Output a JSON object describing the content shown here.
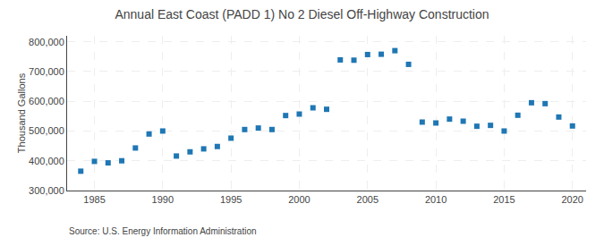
{
  "chart_data": {
    "type": "scatter",
    "title": "Annual East Coast (PADD 1) No 2 Diesel Off-Highway Construction",
    "ylabel": "Thousand Gallons",
    "annotations": [
      "Source: U.S. Energy Information Administration"
    ],
    "marker": "square",
    "grid": true,
    "xlim": [
      1983,
      2021
    ],
    "xticks": [
      1985,
      1990,
      1995,
      2000,
      2005,
      2010,
      2015,
      2020
    ],
    "ylim": [
      300000,
      820000
    ],
    "yticks": [
      {
        "value": 300000,
        "label": "300,000"
      },
      {
        "value": 400000,
        "label": "400,000"
      },
      {
        "value": 500000,
        "label": "500,000"
      },
      {
        "value": 600000,
        "label": "600,000"
      },
      {
        "value": 700000,
        "label": "700,000"
      },
      {
        "value": 800000,
        "label": "800,000"
      }
    ],
    "x": [
      1984,
      1985,
      1986,
      1987,
      1988,
      1989,
      1990,
      1991,
      1992,
      1993,
      1994,
      1995,
      1996,
      1997,
      1998,
      1999,
      2000,
      2001,
      2002,
      2003,
      2004,
      2005,
      2006,
      2007,
      2008,
      2009,
      2010,
      2011,
      2012,
      2013,
      2014,
      2015,
      2016,
      2017,
      2018,
      2019,
      2020
    ],
    "values": [
      365000,
      398000,
      393000,
      400000,
      443000,
      490000,
      500000,
      416000,
      430000,
      440000,
      448000,
      476000,
      505000,
      510000,
      505000,
      552000,
      557000,
      578000,
      573000,
      739000,
      738000,
      757000,
      758000,
      770000,
      724000,
      530000,
      527000,
      540000,
      533000,
      516000,
      519000,
      500000,
      553000,
      595000,
      592000,
      547000,
      517000
    ]
  }
}
